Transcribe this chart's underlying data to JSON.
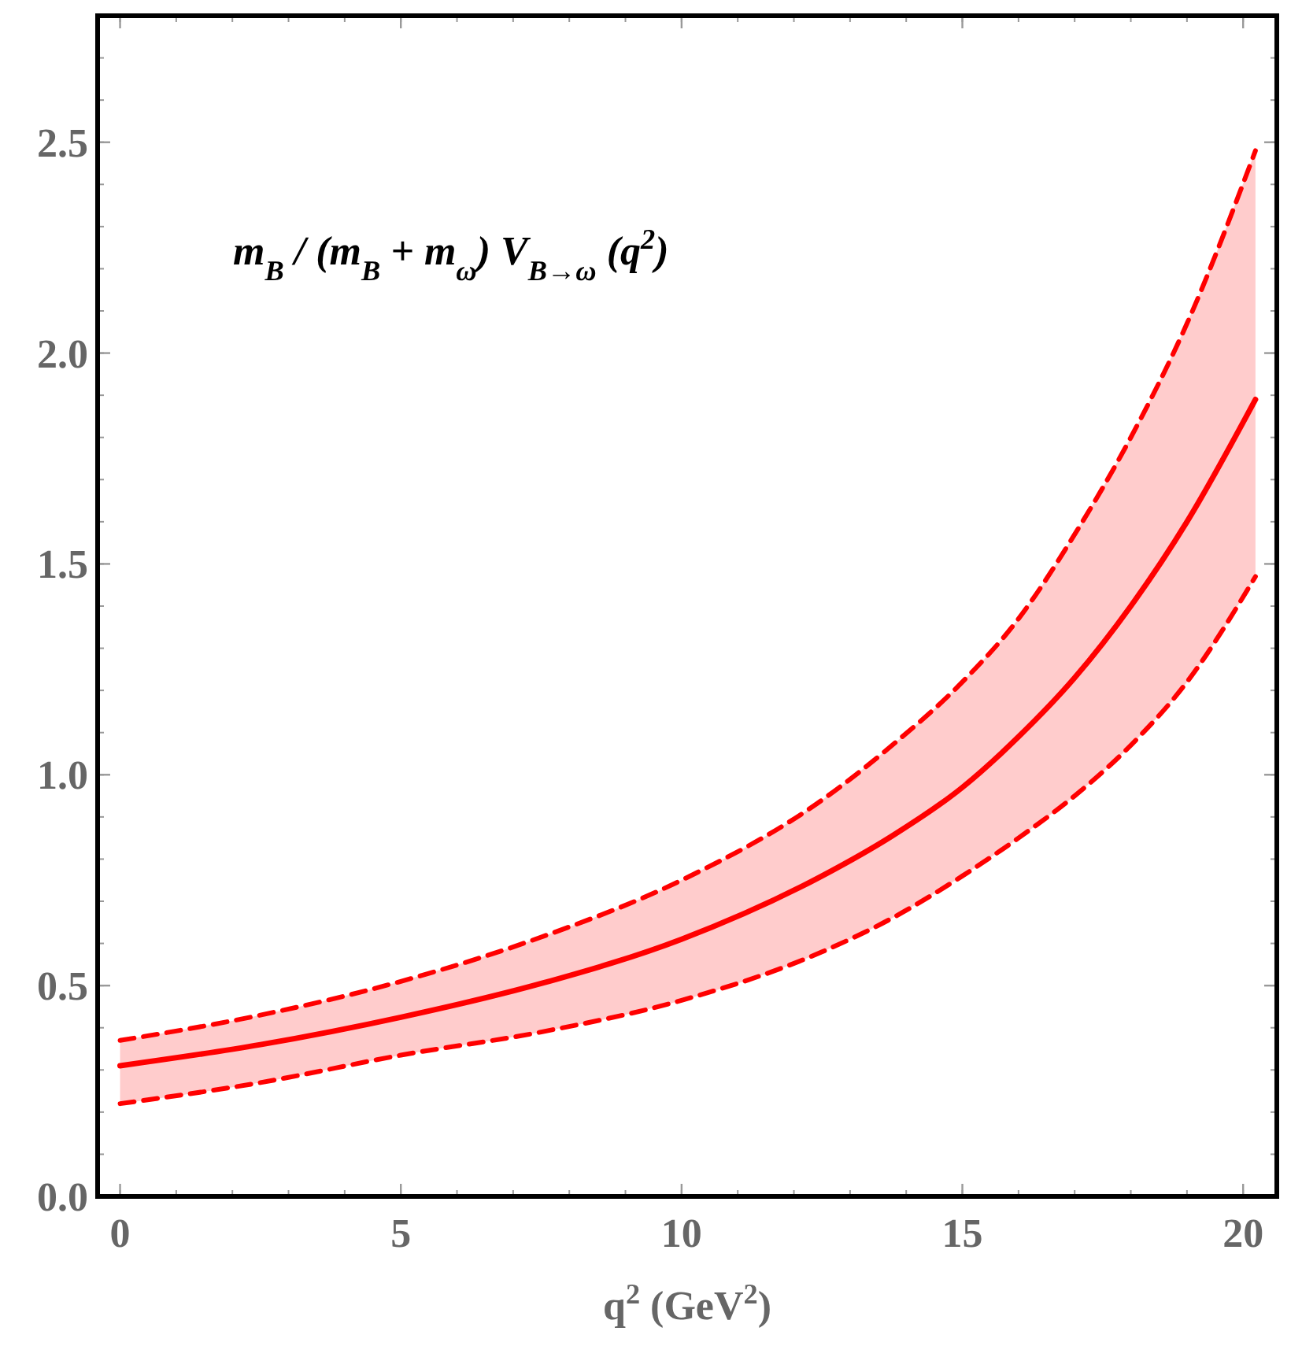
{
  "chart_data": {
    "type": "line",
    "xlabel": "q$^{2}$  (GeV$^{2}$)",
    "annotations": [
      "m$_{B}$ / (m$_{B}$ + m$_{ω}$) V$_{B→ω}$ (q$^{2}$)"
    ],
    "x": [
      0,
      2.5,
      5,
      7.5,
      10,
      12.5,
      13.75,
      15,
      16,
      17,
      18,
      19,
      20.22
    ],
    "series": [
      {
        "color": "#ff0000",
        "values": [
          0.31,
          0.36,
          0.425,
          0.505,
          0.61,
          0.76,
          0.855,
          0.97,
          1.09,
          1.23,
          1.4,
          1.6,
          1.89
        ],
        "lower": [
          0.22,
          0.27,
          0.335,
          0.39,
          0.465,
          0.58,
          0.66,
          0.76,
          0.85,
          0.95,
          1.07,
          1.22,
          1.47
        ],
        "upper": [
          0.37,
          0.43,
          0.51,
          0.615,
          0.75,
          0.94,
          1.07,
          1.22,
          1.37,
          1.57,
          1.8,
          2.07,
          2.48
        ]
      },
      {
        "color": "#ff0000",
        "line_style": "dashed",
        "values": [
          0.37,
          0.43,
          0.51,
          0.615,
          0.75,
          0.94,
          1.07,
          1.22,
          1.37,
          1.57,
          1.8,
          2.07,
          2.48
        ]
      },
      {
        "color": "#ff0000",
        "line_style": "dashed",
        "values": [
          0.22,
          0.27,
          0.335,
          0.39,
          0.465,
          0.58,
          0.66,
          0.76,
          0.85,
          0.95,
          1.07,
          1.22,
          1.47
        ]
      }
    ],
    "xlim": [
      -0.4,
      20.6
    ],
    "ylim": [
      0,
      2.8
    ],
    "xticks": [
      0,
      5,
      10,
      15,
      20
    ],
    "yticks": [
      {
        "value": 0,
        "label": "0.0"
      },
      0.5,
      {
        "value": 1,
        "label": "1.0"
      },
      1.5,
      {
        "value": 2,
        "label": "2.0"
      },
      2.5
    ],
    "grid": false,
    "marker": "none",
    "line_style": "solid"
  }
}
